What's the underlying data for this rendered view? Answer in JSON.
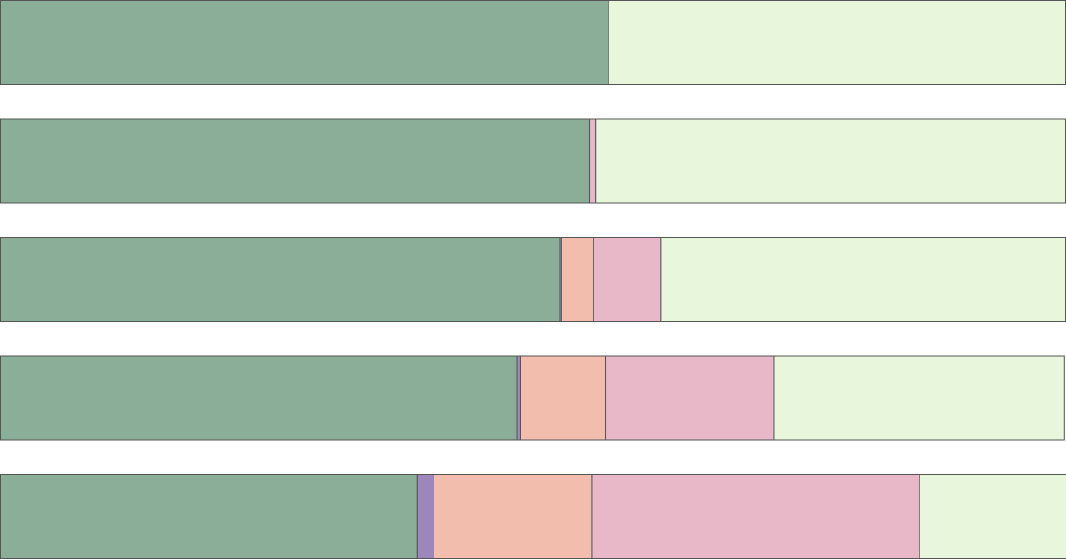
{
  "chart_data": {
    "type": "bar",
    "orientation": "horizontal",
    "stacked": true,
    "categories": [
      null,
      null,
      null,
      null,
      null
    ],
    "xlim": [
      0,
      100
    ],
    "series": [
      {
        "color": "#8aae98",
        "values": [
          57.1,
          55.3,
          52.5,
          48.5,
          39.1
        ]
      },
      {
        "color": "#9b87bb",
        "values": [
          0,
          0,
          0.2,
          0.3,
          1.6
        ]
      },
      {
        "color": "#f3bdae",
        "values": [
          0,
          0,
          3.0,
          8.0,
          14.8
        ]
      },
      {
        "color": "#e8b7c8",
        "values": [
          0,
          0.6,
          6.3,
          15.8,
          30.8
        ]
      },
      {
        "color": "#e8f7dc",
        "values": [
          42.9,
          44.1,
          38.0,
          27.3,
          13.8
        ]
      }
    ]
  }
}
